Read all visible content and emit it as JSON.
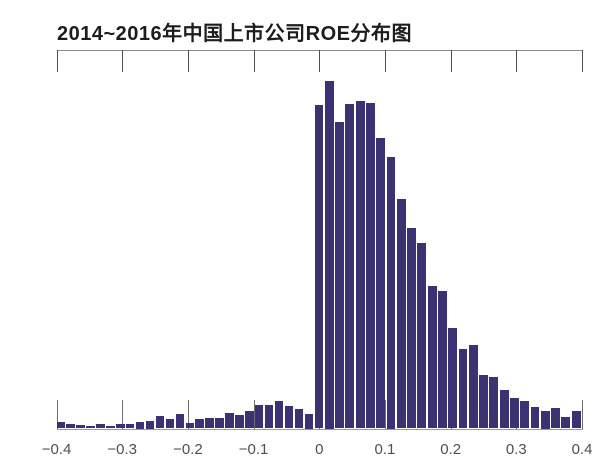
{
  "title": "2014~2016年中国上市公司ROE分布图",
  "chart_data": {
    "type": "bar",
    "subtype": "histogram",
    "title": "2014~2016年中国上市公司ROE分布图",
    "xlabel": "",
    "ylabel": "",
    "x_axis": {
      "min": -0.4,
      "max": 0.4,
      "tick_values": [
        -0.4,
        -0.3,
        -0.2,
        -0.1,
        0,
        0.1,
        0.2,
        0.3,
        0.4
      ],
      "tick_labels": [
        "−0.4",
        "−0.3",
        "−0.2",
        "−0.1",
        "0",
        "0.1",
        "0.2",
        "0.3",
        "0.4"
      ],
      "mirrored_top_axis": true
    },
    "y_axis": {
      "visible": false,
      "note": "no y-axis ticks or labels shown; bar heights are relative frequency, normalized to tallest bar = 100"
    },
    "grid": false,
    "legend": false,
    "bar_color": "#3a3273",
    "bins": {
      "count": 52,
      "range": [
        -0.4,
        0.4
      ],
      "zero_boundary_index": 26,
      "note": "26 bins left of 0 and 26 bins right of 0; distribution jumps sharply at ROE = 0"
    },
    "relative_heights_pct_of_max": [
      2.0,
      1.2,
      1.1,
      0.7,
      1.2,
      0.8,
      1.2,
      1.2,
      1.8,
      2.2,
      3.6,
      2.7,
      4.3,
      1.6,
      2.6,
      3.0,
      2.9,
      4.6,
      4.0,
      4.9,
      6.8,
      6.9,
      7.9,
      6.5,
      5.6,
      4.1,
      93.0,
      100.0,
      88.1,
      93.4,
      94.2,
      93.6,
      83.5,
      78.2,
      66.0,
      57.7,
      53.3,
      41.1,
      39.5,
      28.9,
      22.8,
      24.0,
      15.5,
      14.7,
      11.0,
      8.7,
      7.9,
      6.3,
      5.0,
      5.8,
      3.2,
      4.9
    ]
  }
}
